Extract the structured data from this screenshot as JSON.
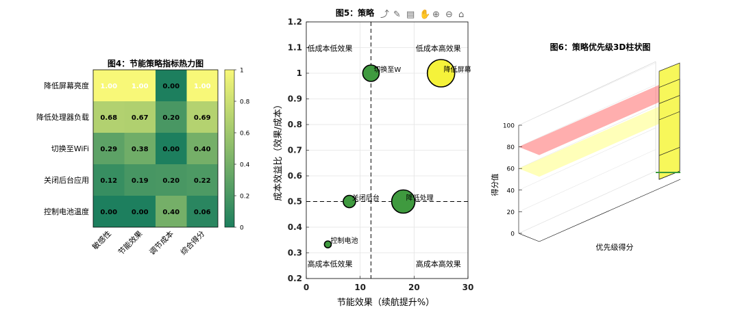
{
  "toolbar": {
    "icons": [
      "export-icon",
      "brush-icon",
      "data-tips-icon",
      "pan-icon",
      "zoom-in-icon",
      "zoom-out-icon",
      "home-icon"
    ]
  },
  "colors": {
    "heat_low": "#1d7f5e",
    "heat_high": "#f8f878",
    "bubble_fill": "#3f9a3f",
    "bubble_fill_yellow": "#f5f23a",
    "red_plane": "#ff6b6b",
    "yellow_plane": "#ffff80",
    "bar_yellow": "#f7f75a"
  },
  "chart_data": [
    {
      "type": "heatmap",
      "title": "图4：节能策略指标热力图",
      "rows": [
        "降低屏幕亮度",
        "降低处理器负载",
        "切换至WiFi",
        "关闭后台应用",
        "控制电池温度"
      ],
      "columns": [
        "敏感性",
        "节能效果",
        "调节成本",
        "综合得分"
      ],
      "values": [
        [
          1.0,
          1.0,
          0.0,
          1.0
        ],
        [
          0.68,
          0.67,
          0.2,
          0.69
        ],
        [
          0.29,
          0.38,
          0.0,
          0.4
        ],
        [
          0.12,
          0.19,
          0.2,
          0.22
        ],
        [
          0.0,
          0.0,
          0.4,
          0.06
        ]
      ],
      "value_labels": [
        [
          "1.00",
          "1.00",
          "0.00",
          "1.00"
        ],
        [
          "0.68",
          "0.67",
          "0.20",
          "0.69"
        ],
        [
          "0.29",
          "0.38",
          "0.00",
          "0.40"
        ],
        [
          "0.12",
          "0.19",
          "0.20",
          "0.22"
        ],
        [
          "0.00",
          "0.00",
          "0.40",
          "0.06"
        ]
      ],
      "colorbar_ticks": [
        "0",
        "0.2",
        "0.4",
        "0.6",
        "0.8",
        "1"
      ],
      "colorbar_range": [
        0,
        1
      ]
    },
    {
      "type": "scatter",
      "title": "图5：策略",
      "xlabel": "节能效果（续航提升%）",
      "ylabel": "成本效益比（效果/成本）",
      "xlim": [
        0,
        30
      ],
      "ylim": [
        0.2,
        1.2
      ],
      "xticks": [
        "0",
        "10",
        "20",
        "30"
      ],
      "yticks": [
        "0.2",
        "0.3",
        "0.4",
        "0.5",
        "0.6",
        "0.7",
        "0.8",
        "0.9",
        "1",
        "1.1",
        "1.2"
      ],
      "grid": true,
      "divider_x": 12,
      "divider_y": 0.5,
      "points": [
        {
          "x": 12,
          "y": 1.0,
          "size": 12,
          "label": "切换至W",
          "highlight": false
        },
        {
          "x": 25,
          "y": 1.0,
          "size": 20,
          "label": "降低屏幕",
          "highlight": true
        },
        {
          "x": 8,
          "y": 0.5,
          "size": 9,
          "label": "关闭后台",
          "highlight": false
        },
        {
          "x": 18,
          "y": 0.5,
          "size": 17,
          "label": "降低处理",
          "highlight": false
        },
        {
          "x": 4,
          "y": 0.333,
          "size": 5,
          "label": "控制电池",
          "highlight": false
        }
      ],
      "quadrant_labels": [
        "低成本低效果",
        "低成本高效果",
        "高成本低效果",
        "高成本高效果"
      ]
    },
    {
      "type": "bar",
      "title": "图6：策略优先级3D柱状图",
      "xlabel": "优先级得分",
      "ylabel": "得分值",
      "zlim": [
        0,
        100
      ],
      "zticks": [
        "0",
        "20",
        "40",
        "60",
        "80",
        "100"
      ],
      "bar_values": [
        100,
        85,
        70,
        55,
        22
      ],
      "threshold_high": 80,
      "threshold_low": 60
    }
  ]
}
